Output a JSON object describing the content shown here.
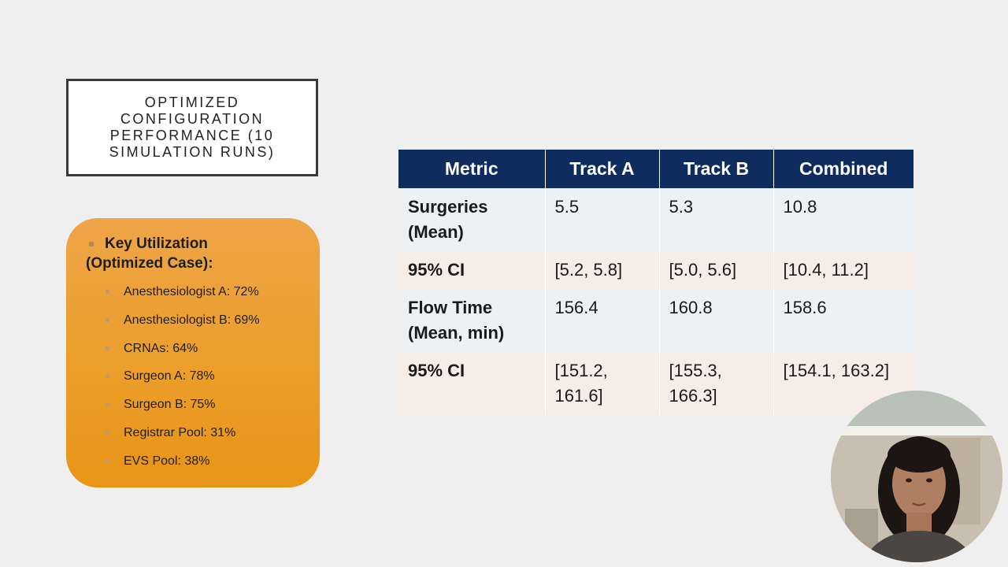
{
  "slide": {
    "title": "Optimized Configuration Performance (10 Simulation Runs)"
  },
  "utilization": {
    "heading_line1": "Key Utilization",
    "heading_line2": "(Optimized Case):",
    "items": [
      {
        "label": "Anesthesiologist A: 72%"
      },
      {
        "label": "Anesthesiologist B: 69%"
      },
      {
        "label": "CRNAs: 64%"
      },
      {
        "label": "Surgeon A: 78%"
      },
      {
        "label": "Surgeon B: 75%"
      },
      {
        "label": "Registrar Pool: 31%"
      },
      {
        "label": "EVS Pool: 38%"
      }
    ],
    "colors": {
      "box_top": "#eea547",
      "box_bottom": "#e89517"
    }
  },
  "table": {
    "headers": [
      "Metric",
      "Track A",
      "Track B",
      "Combined"
    ],
    "rows": [
      {
        "metric": "Surgeries (Mean)",
        "track_a": "5.5",
        "track_b": "5.3",
        "combined": "10.8"
      },
      {
        "metric": "95% CI",
        "track_a": "[5.2, 5.8]",
        "track_b": "[5.0, 5.6]",
        "combined": "[10.4, 11.2]"
      },
      {
        "metric": "Flow Time (Mean, min)",
        "track_a": "156.4",
        "track_b": "160.8",
        "combined": "158.6"
      },
      {
        "metric": "95% CI",
        "track_a": "[151.2, 161.6]",
        "track_b": "[155.3, 166.3]",
        "combined": "[154.1, 163.2]"
      }
    ],
    "colors": {
      "header_bg": "#0f2c5f",
      "row_light": "#eef1f3",
      "row_peach": "#f7ede6"
    }
  },
  "webcam": {
    "icon": "presenter-video-icon"
  }
}
